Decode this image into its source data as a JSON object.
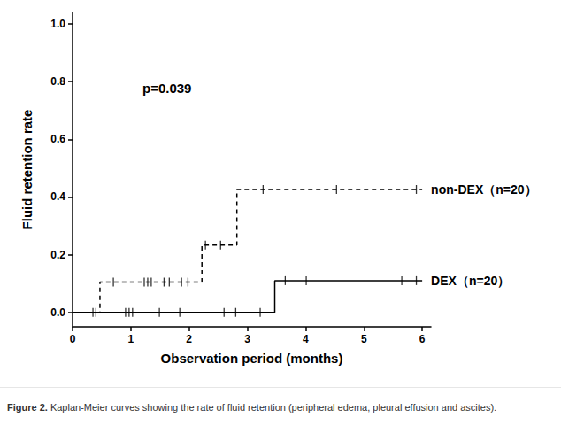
{
  "chart_data": {
    "type": "kaplan_meier",
    "x_label": "Observation period (months)",
    "y_label": "Fluid retention rate",
    "annotation": "p=0.039",
    "figure_label": "Figure 2.",
    "caption": "Kaplan-Meier curves showing the rate of fluid retention (peripheral edema, pleural effusion and ascites).",
    "xlim": [
      0,
      6.15
    ],
    "xticks": [
      0,
      1,
      2,
      3,
      4,
      5,
      6
    ],
    "ylim": [
      -0.05,
      1.04
    ],
    "yticks": [
      {
        "value": 0,
        "label": "0.0"
      },
      {
        "value": 0.2,
        "label": "0.2"
      },
      {
        "value": 0.4,
        "label": "0.4"
      },
      {
        "value": 0.6,
        "label": "0.6"
      },
      {
        "value": 0.8,
        "label": "0.8"
      },
      {
        "value": 1,
        "label": "1.0"
      }
    ],
    "grid": false,
    "series": [
      {
        "name": "non-DEX（n=20）",
        "color": "#000000",
        "line_style": "dashed",
        "x": [
          0,
          0.47,
          2.22,
          2.82,
          6
        ],
        "values": [
          0,
          0.105,
          0.233,
          0.426,
          0.426
        ],
        "censored": [
          0.7,
          1.23,
          1.29,
          1.35,
          1.57,
          1.66,
          1.87,
          1.98,
          2.28,
          2.54,
          3.27,
          4.53,
          5.9
        ]
      },
      {
        "name": "DEX（n=20）",
        "color": "#000000",
        "line_style": "solid",
        "x": [
          0,
          3.47,
          6
        ],
        "values": [
          0,
          0.11,
          0.11
        ],
        "censored": [
          0.35,
          0.4,
          0.91,
          0.97,
          1.03,
          1.49,
          1.84,
          2.6,
          2.8,
          3.22,
          3.65,
          4.01,
          5.65,
          5.9
        ]
      }
    ]
  }
}
